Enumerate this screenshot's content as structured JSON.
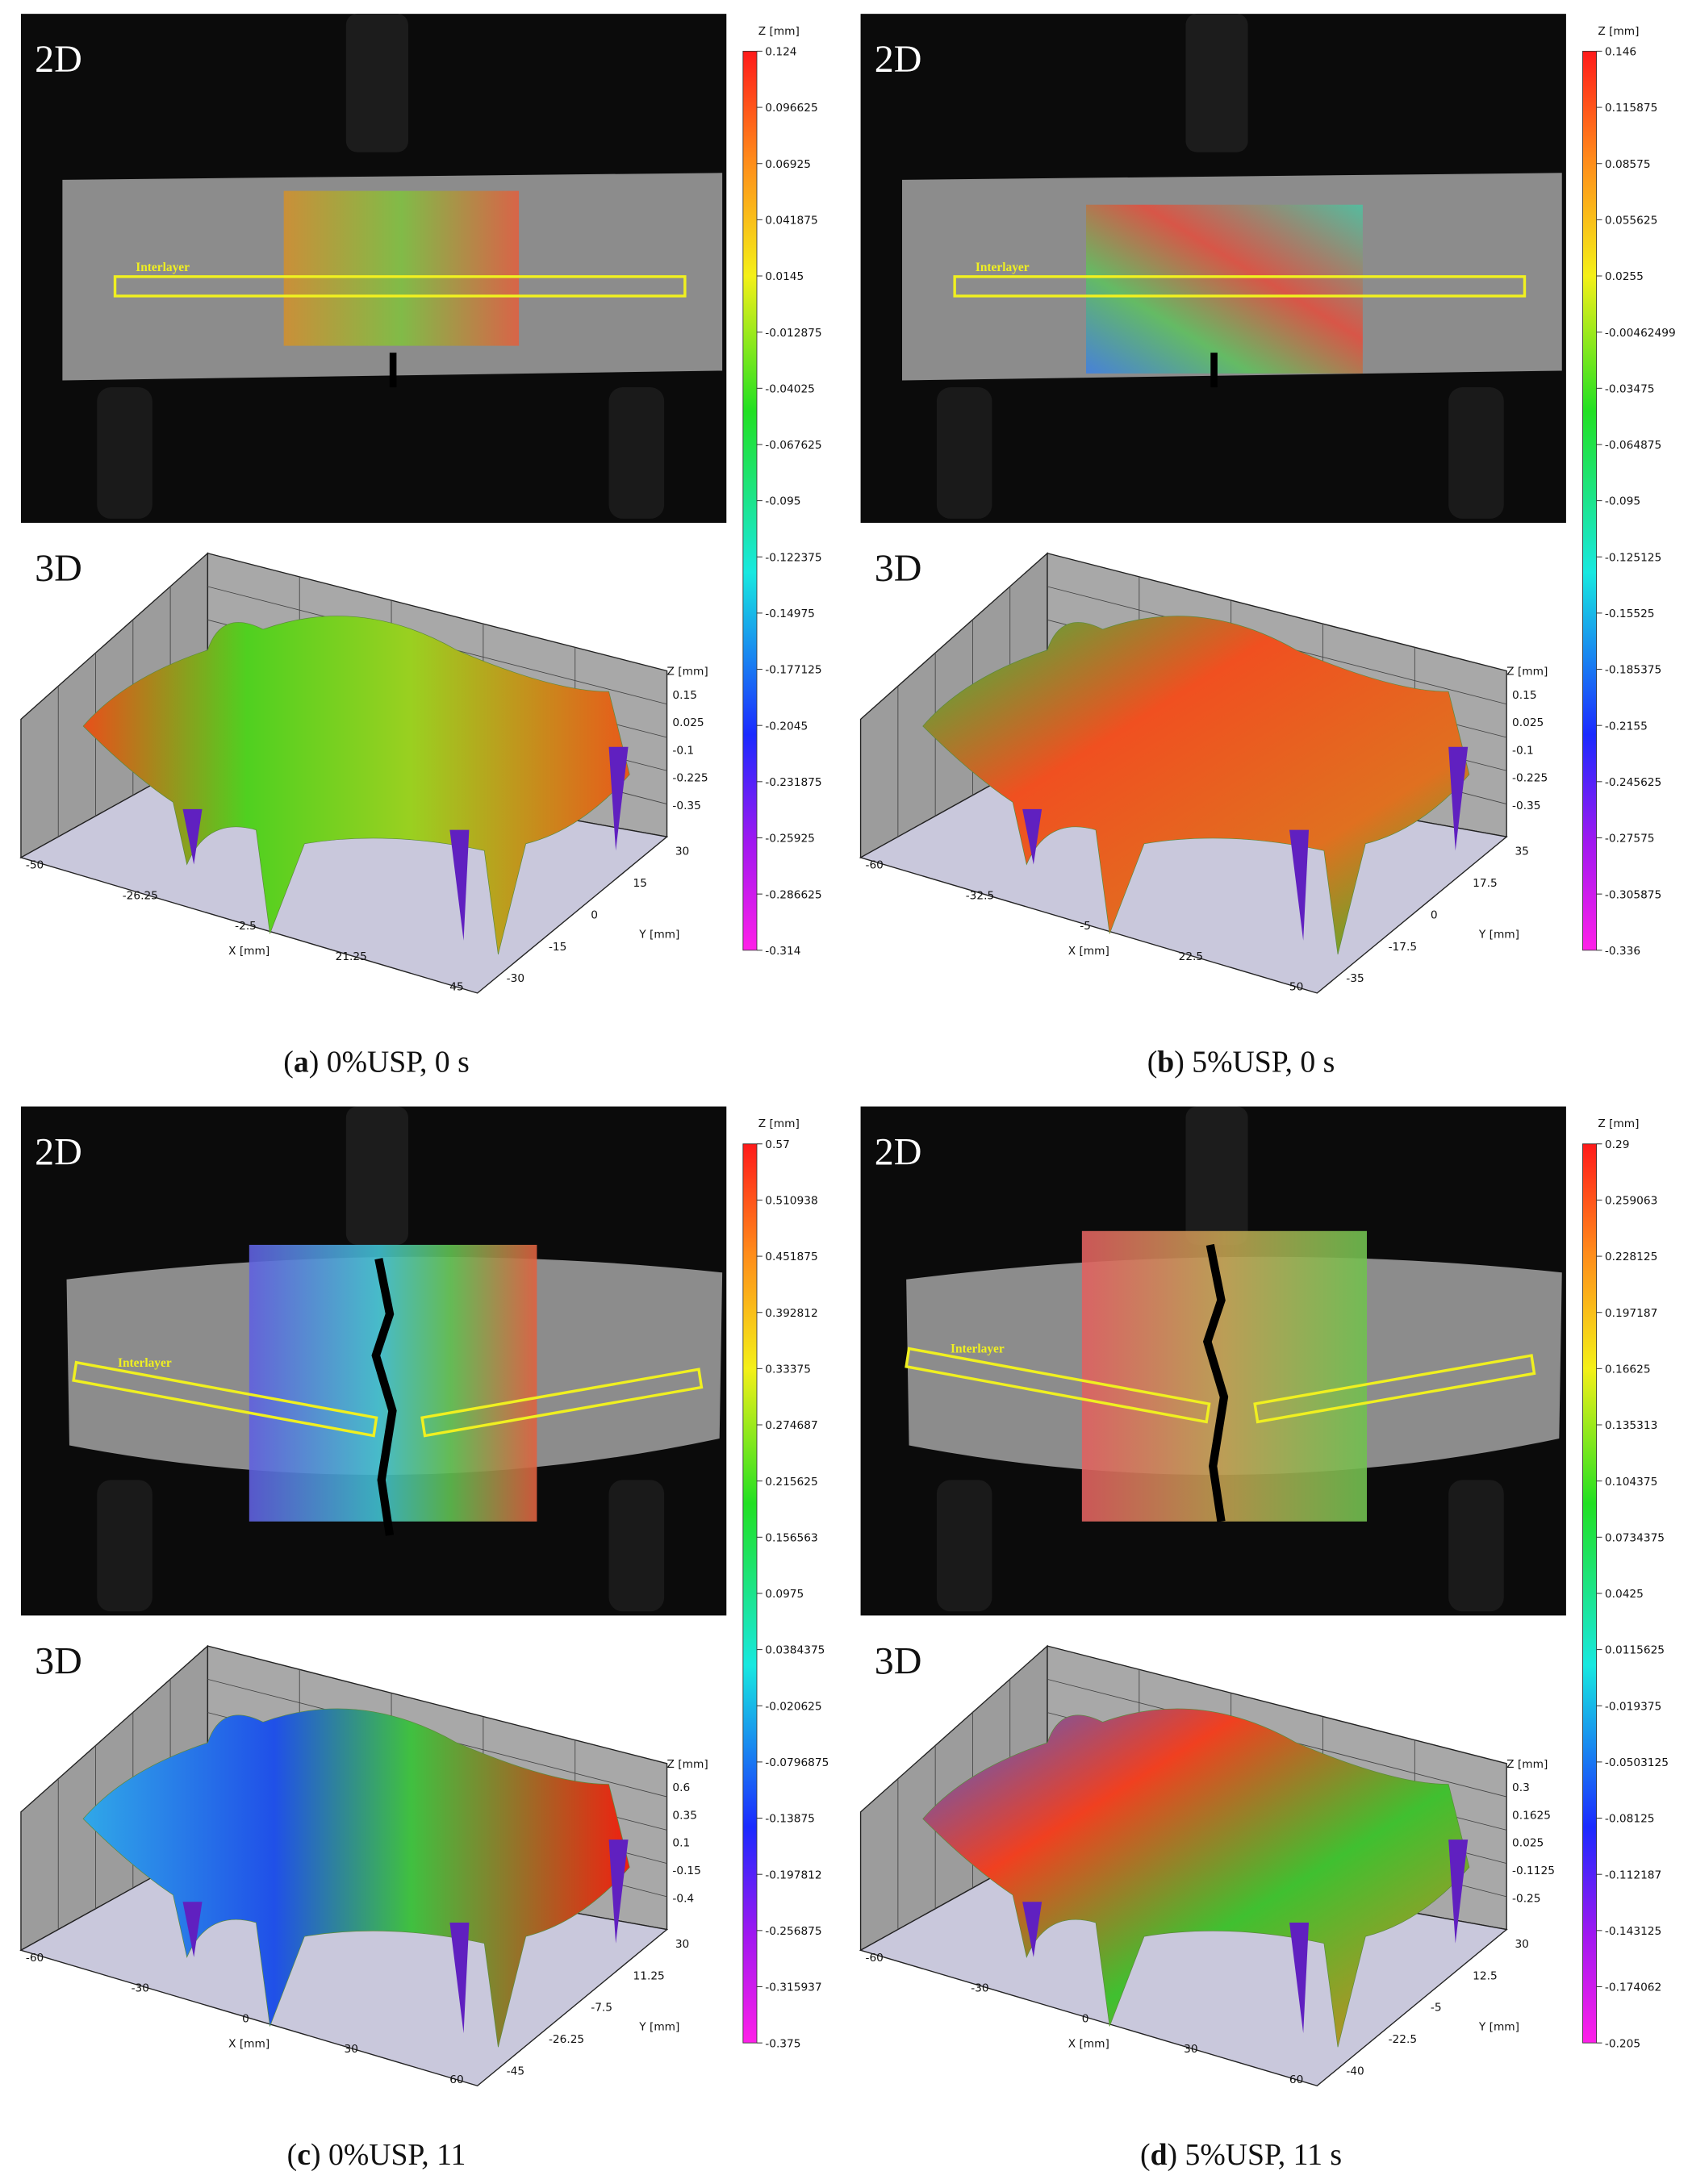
{
  "panels": [
    {
      "label_2d": "2D",
      "label_3d": "3D",
      "interlayer": "Interlayer",
      "colorbar": {
        "title": "Z [mm]",
        "ticks": [
          "0.124",
          "0.096625",
          "0.06925",
          "0.041875",
          "0.0145",
          "-0.012875",
          "-0.04025",
          "-0.067625",
          "-0.095",
          "-0.122375",
          "-0.14975",
          "-0.177125",
          "-0.2045",
          "-0.231875",
          "-0.25925",
          "-0.286625",
          "-0.314"
        ]
      },
      "plot3d": {
        "z_label": "Z [mm]",
        "x_label": "X [mm]",
        "y_label": "Y [mm]",
        "z_ticks": [
          "0.15",
          "0.025",
          "-0.1",
          "-0.225",
          "-0.35"
        ],
        "x_ticks": [
          "-50",
          "-26.25",
          "-2.5",
          "21.25",
          "45"
        ],
        "y_ticks": [
          "30",
          "15",
          "0",
          "-15",
          "-30"
        ]
      },
      "caption": {
        "open": "(",
        "label": "a",
        "rest": ") 0%USP, 0 s"
      }
    },
    {
      "label_2d": "2D",
      "label_3d": "3D",
      "interlayer": "Interlayer",
      "colorbar": {
        "title": "Z [mm]",
        "ticks": [
          "0.146",
          "0.115875",
          "0.08575",
          "0.055625",
          "0.0255",
          "-0.00462499",
          "-0.03475",
          "-0.064875",
          "-0.095",
          "-0.125125",
          "-0.15525",
          "-0.185375",
          "-0.2155",
          "-0.245625",
          "-0.27575",
          "-0.305875",
          "-0.336"
        ]
      },
      "plot3d": {
        "z_label": "Z [mm]",
        "x_label": "X [mm]",
        "y_label": "Y [mm]",
        "z_ticks": [
          "0.15",
          "0.025",
          "-0.1",
          "-0.225",
          "-0.35"
        ],
        "x_ticks": [
          "-60",
          "-32.5",
          "-5",
          "22.5",
          "50"
        ],
        "y_ticks": [
          "35",
          "17.5",
          "0",
          "-17.5",
          "-35"
        ]
      },
      "caption": {
        "open": "(",
        "label": "b",
        "rest": ") 5%USP, 0 s"
      }
    },
    {
      "label_2d": "2D",
      "label_3d": "3D",
      "interlayer": "Interlayer",
      "colorbar": {
        "title": "Z [mm]",
        "ticks": [
          "0.57",
          "0.510938",
          "0.451875",
          "0.392812",
          "0.33375",
          "0.274687",
          "0.215625",
          "0.156563",
          "0.0975",
          "0.0384375",
          "-0.020625",
          "-0.0796875",
          "-0.13875",
          "-0.197812",
          "-0.256875",
          "-0.315937",
          "-0.375"
        ]
      },
      "plot3d": {
        "z_label": "Z [mm]",
        "x_label": "X [mm]",
        "y_label": "Y [mm]",
        "z_ticks": [
          "0.6",
          "0.35",
          "0.1",
          "-0.15",
          "-0.4"
        ],
        "x_ticks": [
          "-60",
          "-30",
          "0",
          "30",
          "60"
        ],
        "y_ticks": [
          "30",
          "11.25",
          "-7.5",
          "-26.25",
          "-45"
        ]
      },
      "caption": {
        "open": "(",
        "label": "c",
        "rest": ") 0%USP, 11"
      }
    },
    {
      "label_2d": "2D",
      "label_3d": "3D",
      "interlayer": "Interlayer",
      "colorbar": {
        "title": "Z [mm]",
        "ticks": [
          "0.29",
          "0.259063",
          "0.228125",
          "0.197187",
          "0.16625",
          "0.135313",
          "0.104375",
          "0.0734375",
          "0.0425",
          "0.0115625",
          "-0.019375",
          "-0.0503125",
          "-0.08125",
          "-0.112187",
          "-0.143125",
          "-0.174062",
          "-0.205"
        ]
      },
      "plot3d": {
        "z_label": "Z [mm]",
        "x_label": "X [mm]",
        "y_label": "Y [mm]",
        "z_ticks": [
          "0.3",
          "0.1625",
          "0.025",
          "-0.1125",
          "-0.25"
        ],
        "x_ticks": [
          "-60",
          "-30",
          "0",
          "30",
          "60"
        ],
        "y_ticks": [
          "30",
          "12.5",
          "-5",
          "-22.5",
          "-40"
        ]
      },
      "caption": {
        "open": "(",
        "label": "d",
        "rest": ") 5%USP, 11 s"
      }
    }
  ]
}
